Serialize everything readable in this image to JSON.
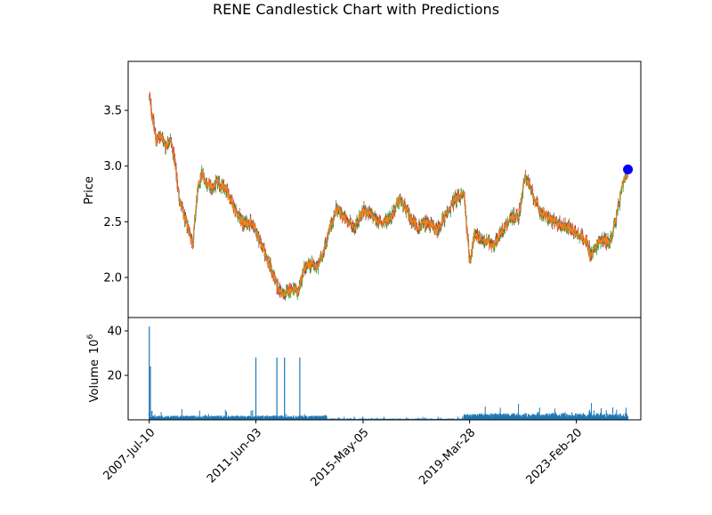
{
  "chart_data": {
    "type": "candlestick",
    "title": "RENE Candlestick Chart with Predictions",
    "colors": {
      "candle_body": "#1f77b4",
      "candle_up": "#2ca02c",
      "candle_down": "#d62728",
      "prediction_line": "#ff7f0e",
      "prediction_marker": "#0000ff",
      "volume_bar": "#1f77b4"
    },
    "price_panel": {
      "ylabel": "Price",
      "ylim": [
        1.64,
        3.94
      ],
      "yticks": [
        2.0,
        2.5,
        3.0,
        3.5
      ],
      "ytick_labels": [
        "2.0",
        "2.5",
        "3.0",
        "3.5"
      ],
      "close_series": [
        [
          "2007-07-10",
          3.62
        ],
        [
          "2007-08-20",
          3.45
        ],
        [
          "2007-10-10",
          3.22
        ],
        [
          "2007-12-10",
          3.28
        ],
        [
          "2008-02-10",
          3.18
        ],
        [
          "2008-04-15",
          3.25
        ],
        [
          "2008-06-10",
          3.05
        ],
        [
          "2008-08-10",
          2.72
        ],
        [
          "2008-10-10",
          2.55
        ],
        [
          "2008-12-10",
          2.45
        ],
        [
          "2009-02-10",
          2.3
        ],
        [
          "2009-04-10",
          2.75
        ],
        [
          "2009-06-10",
          2.95
        ],
        [
          "2009-08-10",
          2.85
        ],
        [
          "2009-10-10",
          2.8
        ],
        [
          "2010-01-10",
          2.85
        ],
        [
          "2010-05-10",
          2.78
        ],
        [
          "2010-09-10",
          2.6
        ],
        [
          "2010-12-10",
          2.48
        ],
        [
          "2011-03-10",
          2.5
        ],
        [
          "2011-06-03",
          2.42
        ],
        [
          "2011-09-10",
          2.25
        ],
        [
          "2011-12-10",
          2.1
        ],
        [
          "2012-03-10",
          1.92
        ],
        [
          "2012-06-10",
          1.84
        ],
        [
          "2012-09-10",
          1.9
        ],
        [
          "2012-12-10",
          1.86
        ],
        [
          "2013-03-10",
          2.08
        ],
        [
          "2013-06-10",
          2.12
        ],
        [
          "2013-09-10",
          2.1
        ],
        [
          "2014-01-10",
          2.35
        ],
        [
          "2014-05-10",
          2.62
        ],
        [
          "2014-09-10",
          2.52
        ],
        [
          "2015-01-10",
          2.45
        ],
        [
          "2015-05-05",
          2.6
        ],
        [
          "2015-09-10",
          2.55
        ],
        [
          "2016-01-10",
          2.48
        ],
        [
          "2016-05-10",
          2.55
        ],
        [
          "2016-09-10",
          2.7
        ],
        [
          "2017-01-10",
          2.55
        ],
        [
          "2017-05-10",
          2.45
        ],
        [
          "2017-09-10",
          2.5
        ],
        [
          "2018-01-10",
          2.42
        ],
        [
          "2018-05-10",
          2.55
        ],
        [
          "2018-09-10",
          2.7
        ],
        [
          "2019-01-10",
          2.75
        ],
        [
          "2019-03-28",
          2.15
        ],
        [
          "2019-06-10",
          2.4
        ],
        [
          "2019-10-10",
          2.32
        ],
        [
          "2020-02-10",
          2.3
        ],
        [
          "2020-06-10",
          2.42
        ],
        [
          "2020-10-10",
          2.55
        ],
        [
          "2021-01-10",
          2.55
        ],
        [
          "2021-04-10",
          2.92
        ],
        [
          "2021-07-10",
          2.75
        ],
        [
          "2021-10-10",
          2.6
        ],
        [
          "2022-01-10",
          2.55
        ],
        [
          "2022-06-10",
          2.48
        ],
        [
          "2022-11-10",
          2.45
        ],
        [
          "2023-02-20",
          2.4
        ],
        [
          "2023-06-10",
          2.35
        ],
        [
          "2023-09-10",
          2.2
        ],
        [
          "2024-01-10",
          2.35
        ],
        [
          "2024-05-10",
          2.32
        ],
        [
          "2024-08-10",
          2.55
        ],
        [
          "2024-11-10",
          2.85
        ],
        [
          "2025-01-10",
          2.94
        ]
      ],
      "prediction_point": [
        "2025-01-10",
        2.97
      ]
    },
    "volume_panel": {
      "ylabel": "Volume",
      "scale_label": "10",
      "scale_exponent": "6",
      "ylim": [
        0,
        46
      ],
      "yticks": [
        20,
        40
      ],
      "ytick_labels": [
        "20",
        "40"
      ],
      "spikes": [
        [
          "2007-07-10",
          42
        ],
        [
          "2007-07-25",
          24
        ],
        [
          "2007-08-15",
          4
        ],
        [
          "2011-06-03",
          28
        ],
        [
          "2012-03-10",
          28
        ],
        [
          "2012-06-20",
          28
        ],
        [
          "2013-01-10",
          28
        ]
      ],
      "baseline_level": 1.3
    },
    "xaxis": {
      "tick_dates": [
        "2007-07-10",
        "2011-06-03",
        "2015-05-05",
        "2019-03-28",
        "2023-02-20"
      ],
      "tick_labels": [
        "2007-Jul-10",
        "2011-Jun-03",
        "2015-May-05",
        "2019-Mar-28",
        "2023-Feb-20"
      ],
      "xlim": [
        "2006-10-01",
        "2025-07-01"
      ]
    }
  }
}
